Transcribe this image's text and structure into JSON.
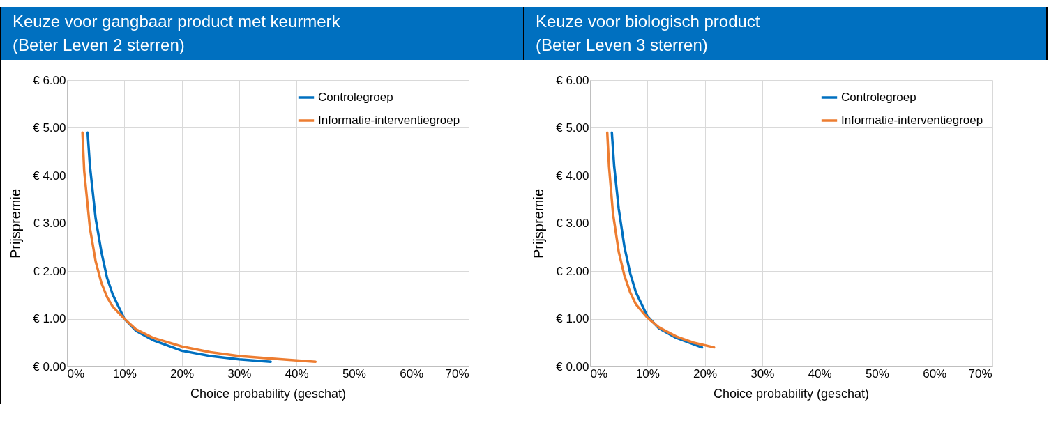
{
  "chart_data": [
    {
      "type": "line",
      "title": "Keuze voor gangbaar product met keurmerk\n(Beter Leven 2 sterren)",
      "xlabel": "Choice probability (geschat)",
      "ylabel": "Prijspremie",
      "series": [
        {
          "name": "Controlegroep",
          "color": "#0070c0",
          "x": [
            3.6,
            4,
            5,
            6,
            7,
            8,
            10,
            12,
            15,
            20,
            25,
            30,
            35.5
          ],
          "values": [
            4.9,
            4.2,
            3.1,
            2.4,
            1.85,
            1.5,
            1.0,
            0.75,
            0.55,
            0.33,
            0.22,
            0.15,
            0.1
          ]
        },
        {
          "name": "Informatie-interventiegroep",
          "color": "#ed7d31",
          "x": [
            2.7,
            3,
            4,
            5,
            6,
            7,
            8,
            10,
            12,
            15,
            20,
            25,
            30,
            35,
            43.3
          ],
          "values": [
            4.9,
            4.1,
            2.9,
            2.2,
            1.75,
            1.45,
            1.25,
            1.0,
            0.78,
            0.6,
            0.42,
            0.3,
            0.22,
            0.17,
            0.1
          ]
        }
      ],
      "xlim": [
        0,
        70
      ],
      "xticks": [
        {
          "value": 0,
          "label": "0%"
        },
        {
          "value": 10,
          "label": "10%"
        },
        {
          "value": 20,
          "label": "20%"
        },
        {
          "value": 30,
          "label": "30%"
        },
        {
          "value": 40,
          "label": "40%"
        },
        {
          "value": 50,
          "label": "50%"
        },
        {
          "value": 60,
          "label": "60%"
        },
        {
          "value": 70,
          "label": "70%"
        }
      ],
      "ylim": [
        0,
        6
      ],
      "yticks": [
        {
          "value": 0,
          "label": "€ 0.00"
        },
        {
          "value": 1,
          "label": "€ 1.00"
        },
        {
          "value": 2,
          "label": "€ 2.00"
        },
        {
          "value": 3,
          "label": "€ 3.00"
        },
        {
          "value": 4,
          "label": "€ 4.00"
        },
        {
          "value": 5,
          "label": "€ 5.00"
        },
        {
          "value": 6,
          "label": "€ 6.00"
        }
      ],
      "grid": true,
      "legend": "top right",
      "marker": "none",
      "line_style": "solid"
    },
    {
      "type": "line",
      "title": "Keuze voor biologisch product\n(Beter Leven 3 sterren)",
      "xlabel": "Choice probability (geschat)",
      "ylabel": "Prijspremie",
      "series": [
        {
          "name": "Controlegroep",
          "color": "#0070c0",
          "x": [
            3.8,
            4.2,
            5,
            6,
            7,
            8,
            10,
            12,
            15,
            19.5
          ],
          "values": [
            4.9,
            4.2,
            3.3,
            2.5,
            1.95,
            1.55,
            1.05,
            0.8,
            0.6,
            0.4
          ]
        },
        {
          "name": "Informatie-interventiegroep",
          "color": "#ed7d31",
          "x": [
            3,
            3.3,
            4,
            5,
            6,
            7,
            8,
            10,
            12,
            15,
            18,
            21.6
          ],
          "values": [
            4.9,
            4.2,
            3.2,
            2.4,
            1.9,
            1.55,
            1.3,
            1.02,
            0.82,
            0.63,
            0.5,
            0.4
          ]
        }
      ],
      "xlim": [
        0,
        70
      ],
      "xticks": [
        {
          "value": 0,
          "label": "0%"
        },
        {
          "value": 10,
          "label": "10%"
        },
        {
          "value": 20,
          "label": "20%"
        },
        {
          "value": 30,
          "label": "30%"
        },
        {
          "value": 40,
          "label": "40%"
        },
        {
          "value": 50,
          "label": "50%"
        },
        {
          "value": 60,
          "label": "60%"
        },
        {
          "value": 70,
          "label": "70%"
        }
      ],
      "ylim": [
        0,
        6
      ],
      "yticks": [
        {
          "value": 0,
          "label": "€ 0.00"
        },
        {
          "value": 1,
          "label": "€ 1.00"
        },
        {
          "value": 2,
          "label": "€ 2.00"
        },
        {
          "value": 3,
          "label": "€ 3.00"
        },
        {
          "value": 4,
          "label": "€ 4.00"
        },
        {
          "value": 5,
          "label": "€ 5.00"
        },
        {
          "value": 6,
          "label": "€ 6.00"
        }
      ],
      "grid": true,
      "legend": "top right",
      "marker": "none",
      "line_style": "solid"
    }
  ]
}
